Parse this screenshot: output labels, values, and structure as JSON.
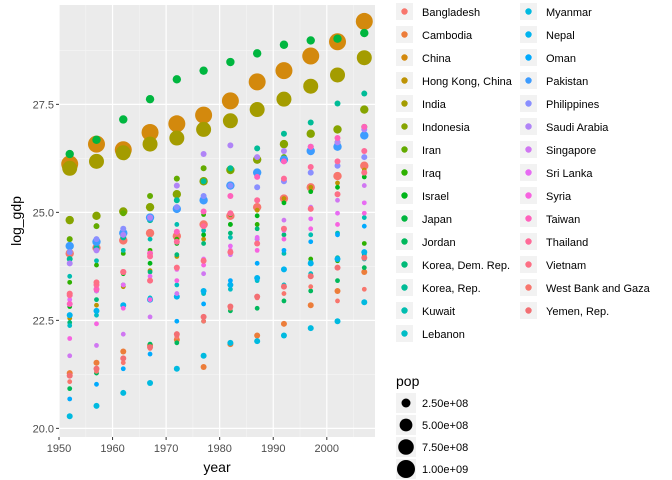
{
  "chart_data": {
    "type": "scatter",
    "xlabel": "year",
    "ylabel": "log_gdp",
    "xlim": [
      1950,
      2009
    ],
    "ylim": [
      19.8,
      29.8
    ],
    "x_ticks": [
      1950,
      1960,
      1970,
      1980,
      1990,
      2000
    ],
    "y_ticks": [
      20.0,
      22.5,
      25.0,
      27.5
    ],
    "grid": true,
    "legend_placement": "right",
    "size_legend": {
      "title": "pop",
      "entries": [
        {
          "label": "2.50e+08",
          "value": 250000000
        },
        {
          "label": "5.00e+08",
          "value": 500000000
        },
        {
          "label": "7.50e+08",
          "value": 750000000
        },
        {
          "label": "1.00e+09",
          "value": 1000000000
        }
      ]
    },
    "series": [
      {
        "name": "Bangladesh",
        "color": "#F8766D",
        "pop_size": "medium",
        "x": [
          1952,
          1957,
          1962,
          1967,
          1972,
          1977,
          1982,
          1987,
          1992,
          1997,
          2002,
          2007
        ],
        "y": [
          24.05,
          24.18,
          24.35,
          24.52,
          24.45,
          24.72,
          24.92,
          25.12,
          25.32,
          25.58,
          25.84,
          26.08
        ]
      },
      {
        "name": "Cambodia",
        "color": "#EC7D3A",
        "pop_size": "small",
        "x": [
          1952,
          1957,
          1962,
          1967,
          1972,
          1977,
          1982,
          1987,
          1992,
          1997,
          2002,
          2007
        ],
        "y": [
          21.28,
          21.52,
          21.78,
          21.92,
          22.05,
          21.42,
          21.95,
          22.15,
          22.42,
          22.85,
          23.18,
          23.62
        ]
      },
      {
        "name": "China",
        "color": "#D3890D",
        "pop_size": "huge",
        "x": [
          1952,
          1957,
          1962,
          1967,
          1972,
          1977,
          1982,
          1987,
          1992,
          1997,
          2002,
          2007
        ],
        "y": [
          26.12,
          26.58,
          26.45,
          26.85,
          27.05,
          27.25,
          27.58,
          28.02,
          28.28,
          28.62,
          28.95,
          29.42
        ]
      },
      {
        "name": "Hong Kong, China",
        "color": "#BE9304",
        "pop_size": "tiny",
        "x": [
          1952,
          1957,
          1962,
          1967,
          1972,
          1977,
          1982,
          1987,
          1992,
          1997,
          2002,
          2007
        ],
        "y": [
          22.55,
          22.85,
          23.28,
          23.65,
          23.98,
          24.38,
          24.72,
          25.05,
          25.32,
          25.58,
          25.68,
          25.98
        ]
      },
      {
        "name": "India",
        "color": "#A49C00",
        "pop_size": "large",
        "x": [
          1952,
          1957,
          1962,
          1967,
          1972,
          1977,
          1982,
          1987,
          1992,
          1997,
          2002,
          2007
        ],
        "y": [
          26.02,
          26.18,
          26.38,
          26.58,
          26.72,
          26.92,
          27.12,
          27.38,
          27.62,
          27.92,
          28.18,
          28.58
        ]
      },
      {
        "name": "Indonesia",
        "color": "#86A400",
        "pop_size": "medium",
        "x": [
          1952,
          1957,
          1962,
          1967,
          1972,
          1977,
          1982,
          1987,
          1992,
          1997,
          2002,
          2007
        ],
        "y": [
          24.82,
          24.92,
          25.02,
          25.12,
          25.42,
          25.72,
          25.98,
          26.22,
          26.58,
          26.82,
          26.92,
          27.38
        ]
      },
      {
        "name": "Iran",
        "color": "#63AB00",
        "pop_size": "small",
        "x": [
          1952,
          1957,
          1962,
          1967,
          1972,
          1977,
          1982,
          1987,
          1992,
          1997,
          2002,
          2007
        ],
        "y": [
          24.38,
          24.68,
          24.98,
          25.38,
          25.78,
          26.02,
          25.98,
          25.92,
          26.28,
          26.42,
          26.62,
          26.98
        ]
      },
      {
        "name": "Iraq",
        "color": "#2EB100",
        "pop_size": "tiny",
        "x": [
          1952,
          1957,
          1962,
          1967,
          1972,
          1977,
          1982,
          1987,
          1992,
          1997,
          2002,
          2007
        ],
        "y": [
          23.38,
          23.78,
          24.05,
          24.12,
          24.38,
          24.95,
          24.95,
          24.72,
          23.68,
          23.92,
          23.88,
          24.28
        ]
      },
      {
        "name": "Israel",
        "color": "#00B519",
        "pop_size": "tiny",
        "x": [
          1952,
          1957,
          1962,
          1967,
          1972,
          1977,
          1982,
          1987,
          1992,
          1997,
          2002,
          2007
        ],
        "y": [
          22.82,
          23.18,
          23.58,
          23.82,
          24.28,
          24.48,
          24.72,
          24.92,
          25.22,
          25.48,
          25.58,
          25.82
        ]
      },
      {
        "name": "Japan",
        "color": "#00B63F",
        "pop_size": "medium",
        "x": [
          1952,
          1957,
          1962,
          1967,
          1972,
          1977,
          1982,
          1987,
          1992,
          1997,
          2002,
          2007
        ],
        "y": [
          26.35,
          26.68,
          27.15,
          27.62,
          28.08,
          28.28,
          28.48,
          28.68,
          28.88,
          28.98,
          29.02,
          29.15
        ]
      },
      {
        "name": "Jordan",
        "color": "#00B85C",
        "pop_size": "tiny",
        "x": [
          1952,
          1957,
          1962,
          1967,
          1972,
          1977,
          1982,
          1987,
          1992,
          1997,
          2002,
          2007
        ],
        "y": [
          20.92,
          21.28,
          21.62,
          21.95,
          21.98,
          22.48,
          22.72,
          22.78,
          22.95,
          23.18,
          23.42,
          23.72
        ]
      },
      {
        "name": "Korea, Dem. Rep.",
        "color": "#00BA78",
        "pop_size": "tiny",
        "x": [
          1952,
          1957,
          1962,
          1967,
          1972,
          1977,
          1982,
          1987,
          1992,
          1997,
          2002,
          2007
        ],
        "y": [
          22.45,
          22.98,
          23.32,
          23.62,
          24.02,
          24.28,
          24.52,
          24.62,
          24.48,
          23.85,
          23.95,
          24.02
        ]
      },
      {
        "name": "Korea, Rep.",
        "color": "#00BC97",
        "pop_size": "small",
        "x": [
          1952,
          1957,
          1962,
          1967,
          1972,
          1977,
          1982,
          1987,
          1992,
          1997,
          2002,
          2007
        ],
        "y": [
          23.92,
          24.18,
          24.42,
          24.82,
          25.28,
          25.72,
          26.02,
          26.48,
          26.82,
          27.08,
          27.52,
          27.75
        ]
      },
      {
        "name": "Kuwait",
        "color": "#00BDB0",
        "pop_size": "tiny",
        "x": [
          1952,
          1957,
          1962,
          1967,
          1972,
          1977,
          1982,
          1987,
          1992,
          1997,
          2002,
          2007
        ],
        "y": [
          23.52,
          23.88,
          24.12,
          24.38,
          24.72,
          24.58,
          24.42,
          24.38,
          24.05,
          24.48,
          24.52,
          24.88
        ]
      },
      {
        "name": "Lebanon",
        "color": "#00BDC6",
        "pop_size": "tiny",
        "x": [
          1952,
          1957,
          1962,
          1967,
          1972,
          1977,
          1982,
          1987,
          1992,
          1997,
          2002,
          2007
        ],
        "y": [
          22.38,
          22.62,
          22.82,
          23.02,
          23.32,
          23.12,
          23.22,
          23.42,
          23.32,
          23.58,
          23.72,
          23.92
        ]
      },
      {
        "name": "Myanmar",
        "color": "#00BAE0",
        "pop_size": "small",
        "x": [
          1952,
          1957,
          1962,
          1967,
          1972,
          1977,
          1982,
          1987,
          1992,
          1997,
          2002,
          2007
        ],
        "y": [
          20.28,
          20.52,
          20.82,
          21.05,
          21.38,
          21.68,
          21.98,
          22.02,
          22.15,
          22.32,
          22.48,
          22.92
        ]
      },
      {
        "name": "Nepal",
        "color": "#00B4EF",
        "pop_size": "small",
        "x": [
          1952,
          1957,
          1962,
          1967,
          1972,
          1977,
          1982,
          1987,
          1992,
          1997,
          2002,
          2007
        ],
        "y": [
          22.62,
          22.72,
          22.85,
          22.98,
          23.05,
          23.18,
          23.32,
          23.48,
          23.68,
          23.82,
          23.92,
          24.08
        ]
      },
      {
        "name": "Oman",
        "color": "#00AAFE",
        "pop_size": "tiny",
        "x": [
          1952,
          1957,
          1962,
          1967,
          1972,
          1977,
          1982,
          1987,
          1992,
          1997,
          2002,
          2007
        ],
        "y": [
          20.68,
          21.02,
          21.38,
          21.72,
          22.48,
          22.88,
          23.42,
          23.82,
          24.12,
          24.32,
          24.48,
          24.68
        ]
      },
      {
        "name": "Pakistan",
        "color": "#3D9CFF",
        "pop_size": "medium",
        "x": [
          1952,
          1957,
          1962,
          1967,
          1972,
          1977,
          1982,
          1987,
          1992,
          1997,
          2002,
          2007
        ],
        "y": [
          24.22,
          24.32,
          24.52,
          24.88,
          25.08,
          25.28,
          25.62,
          25.92,
          26.22,
          26.42,
          26.52,
          26.78
        ]
      },
      {
        "name": "Philippines",
        "color": "#8A8FFF",
        "pop_size": "small",
        "x": [
          1952,
          1957,
          1962,
          1967,
          1972,
          1977,
          1982,
          1987,
          1992,
          1997,
          2002,
          2007
        ],
        "y": [
          24.08,
          24.38,
          24.62,
          24.88,
          25.12,
          25.38,
          25.62,
          25.58,
          25.72,
          25.92,
          26.08,
          26.28
        ]
      },
      {
        "name": "Saudi Arabia",
        "color": "#B084F7",
        "pop_size": "small",
        "x": [
          1952,
          1957,
          1962,
          1967,
          1972,
          1977,
          1982,
          1987,
          1992,
          1997,
          2002,
          2007
        ],
        "y": [
          23.82,
          24.12,
          24.48,
          24.88,
          25.62,
          26.35,
          26.55,
          26.28,
          26.42,
          26.52,
          26.62,
          26.92
        ]
      },
      {
        "name": "Singapore",
        "color": "#D077F2",
        "pop_size": "tiny",
        "x": [
          1952,
          1957,
          1962,
          1967,
          1972,
          1977,
          1982,
          1987,
          1992,
          1997,
          2002,
          2007
        ],
        "y": [
          21.68,
          21.92,
          22.18,
          22.58,
          23.12,
          23.58,
          24.02,
          24.38,
          24.82,
          25.12,
          25.28,
          25.62
        ]
      },
      {
        "name": "Sri Lanka",
        "color": "#E76BF3",
        "pop_size": "tiny",
        "x": [
          1952,
          1957,
          1962,
          1967,
          1972,
          1977,
          1982,
          1987,
          1992,
          1997,
          2002,
          2007
        ],
        "y": [
          22.98,
          23.18,
          23.32,
          23.52,
          23.68,
          23.92,
          24.22,
          24.42,
          24.58,
          24.85,
          24.98,
          25.22
        ]
      },
      {
        "name": "Syria",
        "color": "#F763E0",
        "pop_size": "tiny",
        "x": [
          1952,
          1957,
          1962,
          1967,
          1972,
          1977,
          1982,
          1987,
          1992,
          1997,
          2002,
          2007
        ],
        "y": [
          22.08,
          22.42,
          22.78,
          22.98,
          23.42,
          23.78,
          24.12,
          24.12,
          24.38,
          24.62,
          24.72,
          24.98
        ]
      },
      {
        "name": "Taiwan",
        "color": "#FF62BC",
        "pop_size": "small",
        "x": [
          1952,
          1957,
          1962,
          1967,
          1972,
          1977,
          1982,
          1987,
          1992,
          1997,
          2002,
          2007
        ],
        "y": [
          22.88,
          23.22,
          23.62,
          24.05,
          24.55,
          25.02,
          25.38,
          25.82,
          26.18,
          26.52,
          26.72,
          26.98
        ]
      },
      {
        "name": "Thailand",
        "color": "#FF6A98",
        "pop_size": "small",
        "x": [
          1952,
          1957,
          1962,
          1967,
          1972,
          1977,
          1982,
          1987,
          1992,
          1997,
          2002,
          2007
        ],
        "y": [
          23.08,
          23.32,
          23.62,
          23.98,
          24.32,
          24.68,
          24.98,
          25.28,
          25.78,
          26.05,
          26.18,
          26.42
        ]
      },
      {
        "name": "Vietnam",
        "color": "#FD6F84",
        "pop_size": "small",
        "x": [
          1952,
          1957,
          1962,
          1967,
          1972,
          1977,
          1982,
          1987,
          1992,
          1997,
          2002,
          2007
        ],
        "y": [
          23.12,
          23.38,
          23.62,
          23.42,
          23.72,
          23.88,
          24.08,
          24.28,
          24.62,
          25.08,
          25.42,
          25.92
        ]
      },
      {
        "name": "West Bank and Gaza",
        "color": "#F8766D",
        "pop_size": "tiny",
        "x": [
          1952,
          1957,
          1962,
          1967,
          1972,
          1977,
          1982,
          1987,
          1992,
          1997,
          2002,
          2007
        ],
        "y": [
          21.08,
          21.32,
          21.52,
          21.85,
          22.12,
          22.48,
          22.78,
          23.02,
          23.12,
          23.28,
          22.95,
          23.22
        ]
      },
      {
        "name": "Yemen, Rep.",
        "color": "#F36F73",
        "pop_size": "small",
        "x": [
          1952,
          1957,
          1962,
          1967,
          1972,
          1977,
          1982,
          1987,
          1992,
          1997,
          2002,
          2007
        ],
        "y": [
          21.22,
          21.38,
          21.62,
          21.88,
          22.18,
          22.58,
          22.82,
          23.05,
          23.28,
          23.52,
          23.72,
          23.95
        ]
      }
    ]
  }
}
